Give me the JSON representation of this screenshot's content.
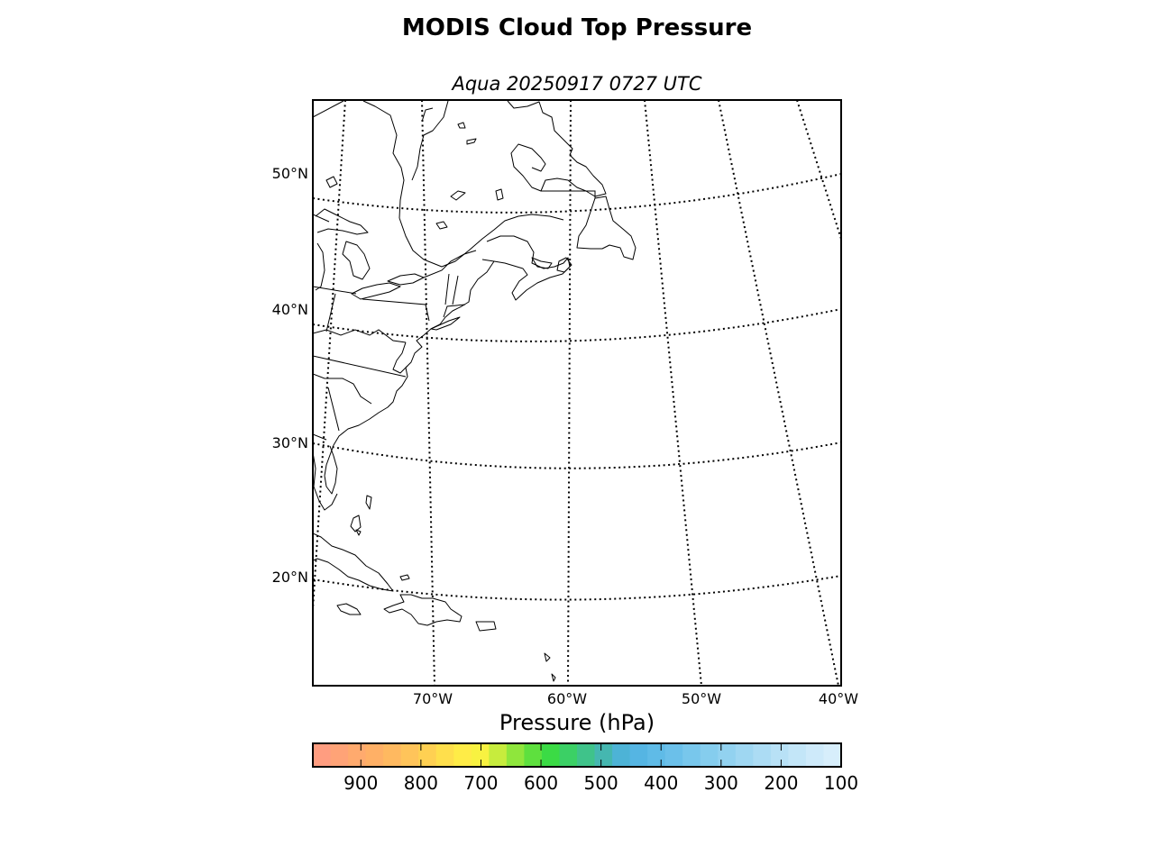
{
  "title": "MODIS Cloud Top Pressure",
  "subtitle": "Aqua 20250917 0727 UTC",
  "latitude_labels": [
    "50°N",
    "40°N",
    "30°N",
    "20°N"
  ],
  "longitude_labels": [
    "70°W",
    "60°W",
    "50°W",
    "40°W"
  ],
  "colorbar": {
    "label": "Pressure (hPa)",
    "ticks": [
      "900",
      "800",
      "700",
      "600",
      "500",
      "400",
      "300",
      "200",
      "100"
    ],
    "range_hpa": [
      980,
      100
    ],
    "colors": [
      "#ff9d80",
      "#ffa377",
      "#ffaa6e",
      "#ffb066",
      "#ffb960",
      "#ffc45a",
      "#ffd052",
      "#ffdf4c",
      "#ffec47",
      "#f8f241",
      "#c7ec3d",
      "#8fe63c",
      "#5ee03e",
      "#3bdb45",
      "#3bd065",
      "#3fc38a",
      "#45b7b0",
      "#4db3d6",
      "#55b5e3",
      "#5fbbe7",
      "#6bc0ea",
      "#78c7ec",
      "#85cdee",
      "#92d2f0",
      "#9fd7f2",
      "#acdcf4",
      "#b8e1f6",
      "#c3e6f8",
      "#ceeafa",
      "#d7eefb"
    ]
  },
  "map": {
    "projection": "lambert-conformal",
    "parallels_deg_n": [
      20,
      30,
      40,
      50
    ],
    "meridians_deg_w": [
      80,
      70,
      60,
      50,
      40
    ],
    "cloud_data_shown": false
  }
}
